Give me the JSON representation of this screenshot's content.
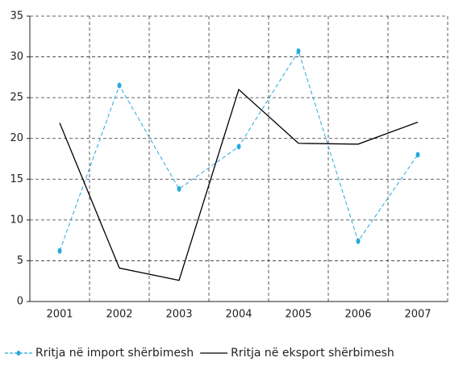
{
  "chart_data": {
    "type": "line",
    "categories": [
      "2001",
      "2002",
      "2003",
      "2004",
      "2005",
      "2006",
      "2007"
    ],
    "series": [
      {
        "name": "Rritja në import shërbimesh",
        "color": "#29a9df",
        "dash": true,
        "markers": true,
        "values": [
          6.2,
          26.5,
          13.8,
          19.0,
          30.7,
          7.4,
          18.0
        ]
      },
      {
        "name": "Rritja në eksport shërbimesh",
        "color": "#000000",
        "dash": false,
        "markers": false,
        "values": [
          21.9,
          4.1,
          2.6,
          26.0,
          19.4,
          19.3,
          22.0
        ]
      }
    ],
    "ylim": [
      0,
      35
    ],
    "yticks": [
      0,
      5,
      10,
      15,
      20,
      25,
      30,
      35
    ],
    "grid": true,
    "legend": "bottom"
  }
}
